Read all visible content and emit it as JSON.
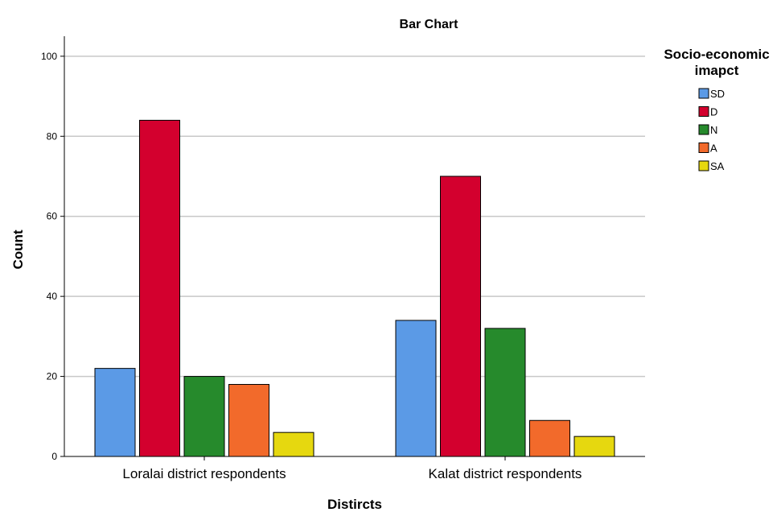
{
  "chart_data": {
    "type": "bar",
    "title": "Bar Chart",
    "xlabel": "Distircts",
    "ylabel": "Count",
    "ylim": [
      0,
      105
    ],
    "yticks": [
      0,
      20,
      40,
      60,
      80,
      100
    ],
    "grid": true,
    "categories": [
      "Loralai district respondents",
      "Kalat district respondents"
    ],
    "legend": {
      "title_line1": "Socio-economic",
      "title_line2": "imapct",
      "placement": "right"
    },
    "series": [
      {
        "name": "SD",
        "color": "#5b9ae6",
        "values": [
          22,
          34
        ]
      },
      {
        "name": "D",
        "color": "#d3002e",
        "values": [
          84,
          70
        ]
      },
      {
        "name": "N",
        "color": "#268a2c",
        "values": [
          20,
          32
        ]
      },
      {
        "name": "A",
        "color": "#f26a2b",
        "values": [
          18,
          9
        ]
      },
      {
        "name": "SA",
        "color": "#e6d80f",
        "values": [
          6,
          5
        ]
      }
    ]
  }
}
